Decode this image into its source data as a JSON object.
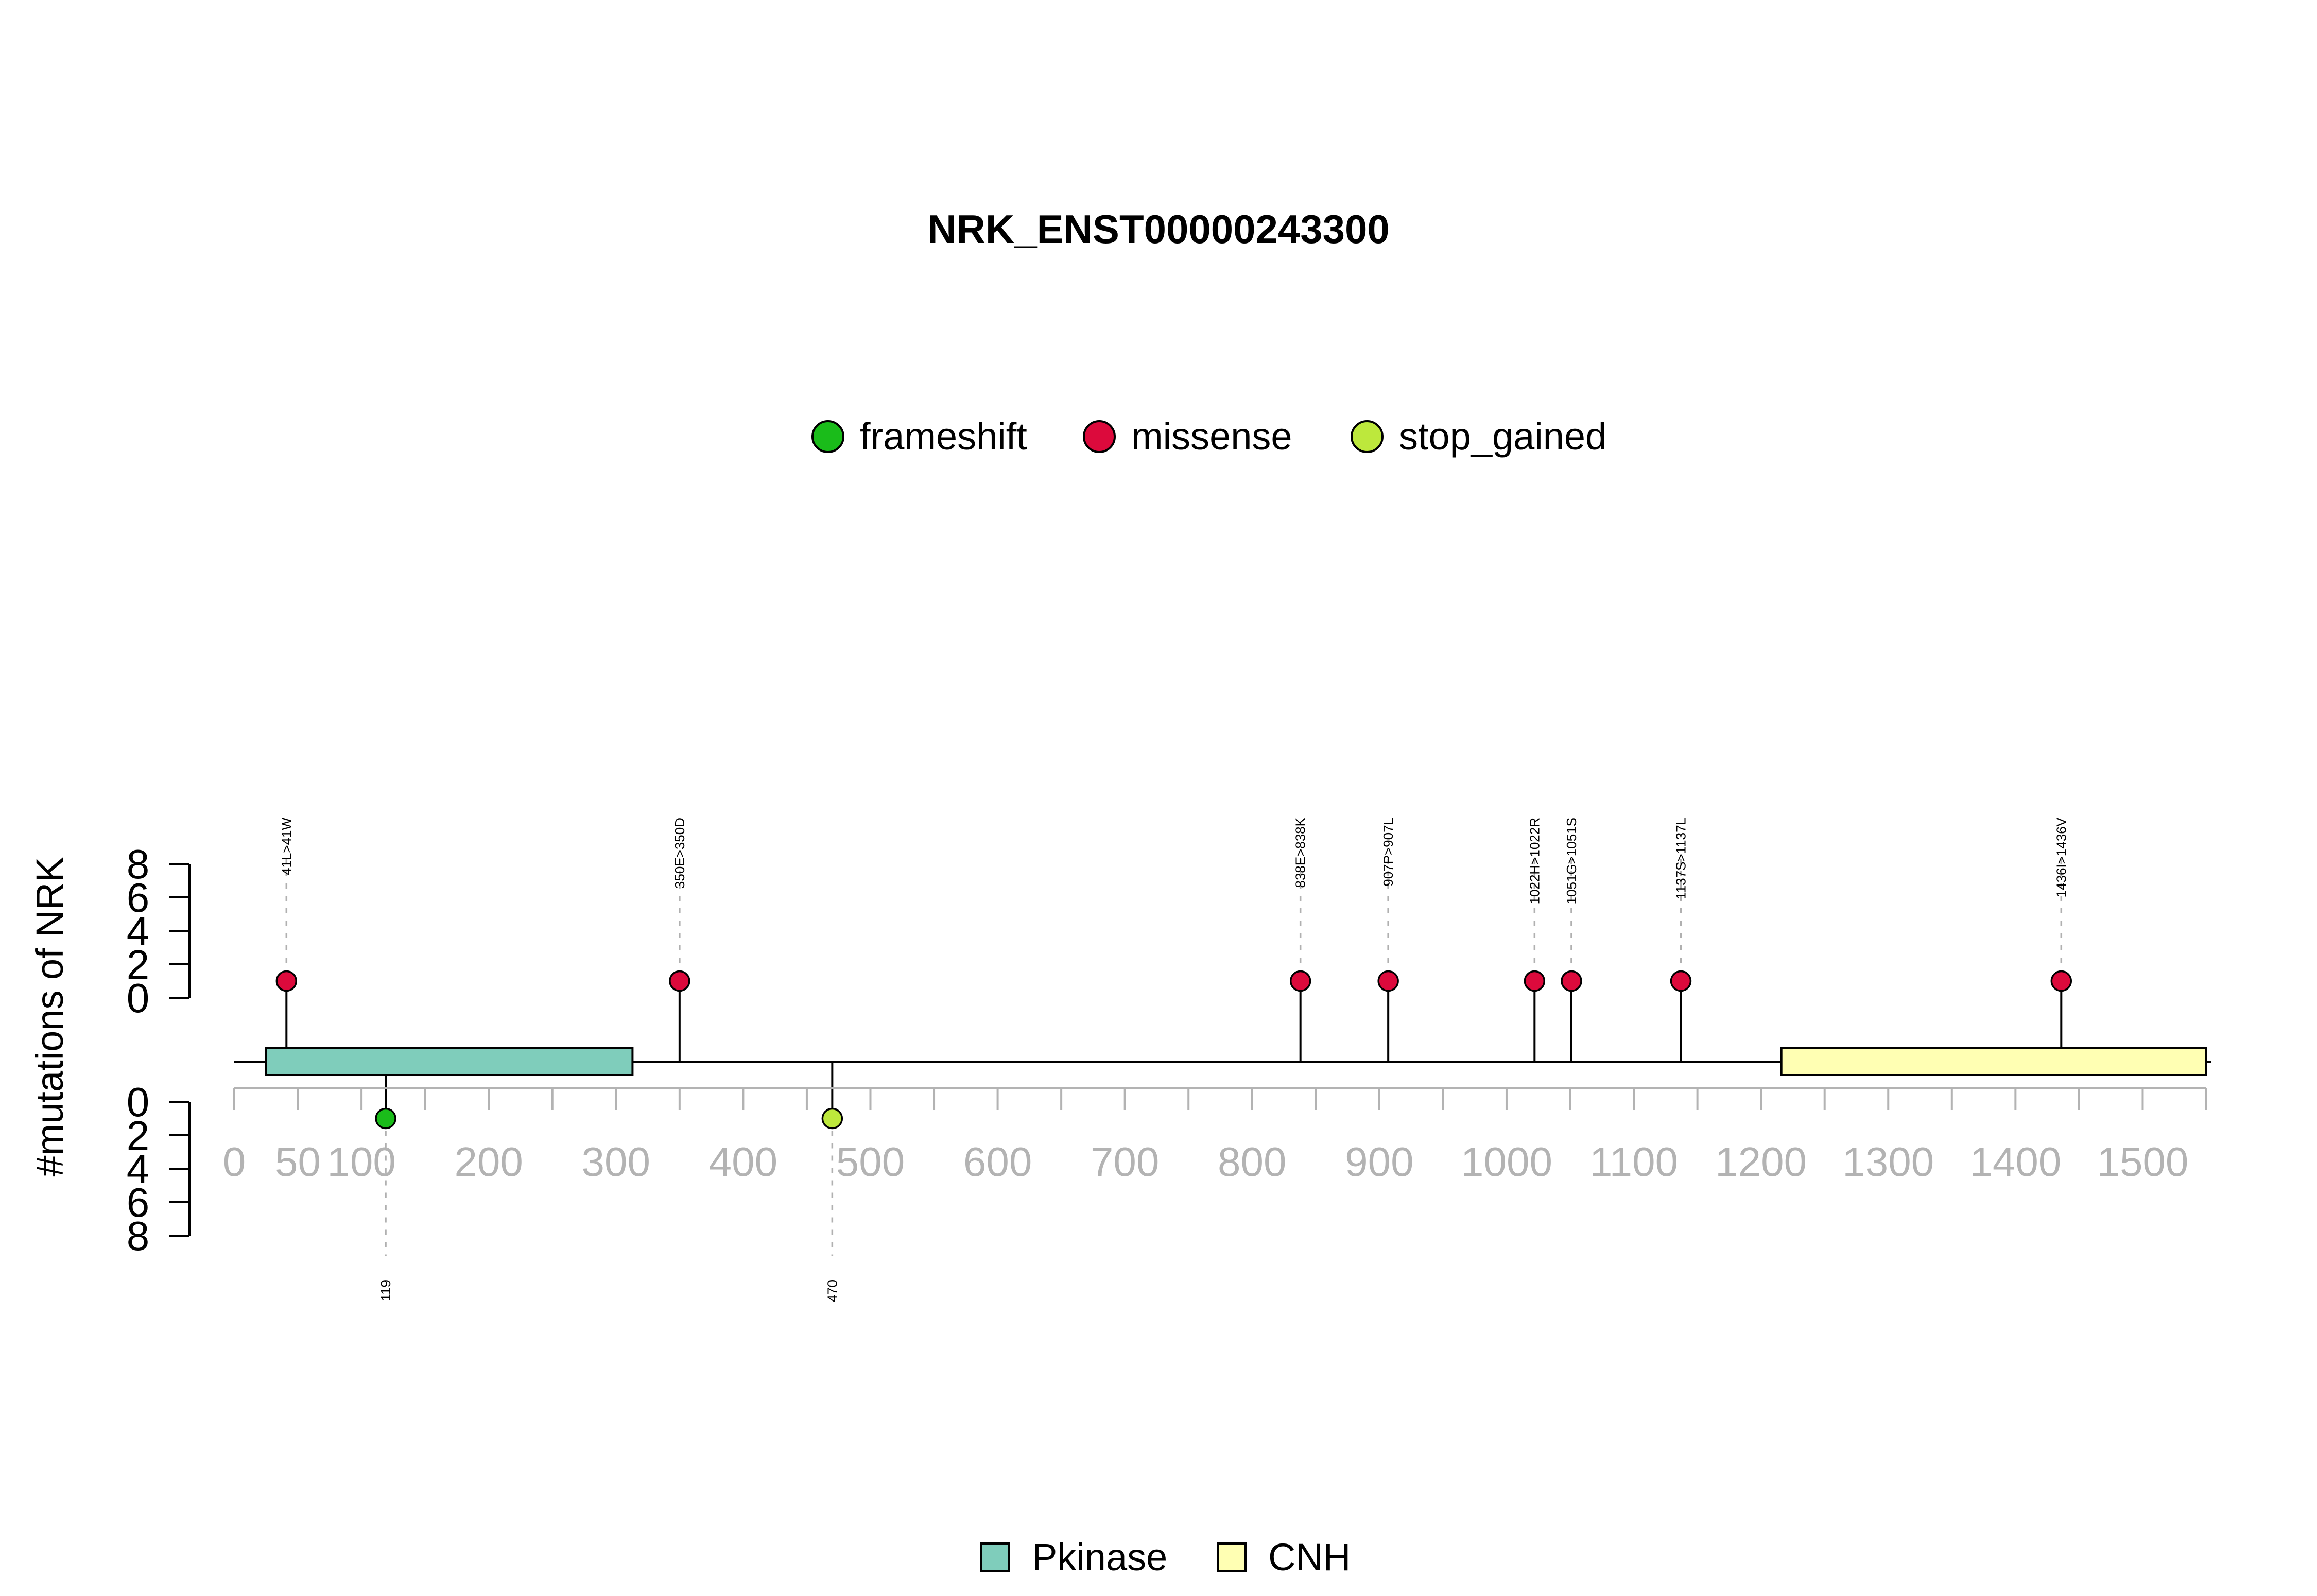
{
  "chart_data": {
    "type": "lollipop",
    "title": "NRK_ENST00000243300",
    "ylabel": "#mutations of NRK",
    "ylim": [
      0,
      8
    ],
    "y_ticks": [
      0,
      2,
      4,
      6,
      8
    ],
    "xlim": [
      0,
      1550
    ],
    "x_ticks": [
      0,
      50,
      100,
      200,
      300,
      400,
      500,
      600,
      700,
      800,
      900,
      1000,
      1100,
      1200,
      1300,
      1400,
      1500
    ],
    "x_minor_ticks": [
      0,
      50,
      100,
      150,
      200,
      250,
      300,
      350,
      400,
      450,
      500,
      550,
      600,
      650,
      700,
      750,
      800,
      850,
      900,
      950,
      1000,
      1050,
      1100,
      1150,
      1200,
      1250,
      1300,
      1350,
      1400,
      1450,
      1500,
      1550
    ],
    "mutation_legend": [
      {
        "name": "frameshift",
        "color": "#1ABC1A"
      },
      {
        "name": "missense",
        "color": "#DC0A3C"
      },
      {
        "name": "stop_gained",
        "color": "#BDE83C"
      }
    ],
    "domain_legend": [
      {
        "name": "Pkinase",
        "color": "#7FCDBB"
      },
      {
        "name": "CNH",
        "color": "#FFFFB3"
      }
    ],
    "domains": [
      {
        "name": "Pkinase",
        "start": 25,
        "end": 313
      },
      {
        "name": "CNH",
        "start": 1216,
        "end": 1550
      }
    ],
    "mutations_above": [
      {
        "position": 41,
        "label": "41L>41W",
        "count": 1,
        "type": "missense"
      },
      {
        "position": 350,
        "label": "350E>350D",
        "count": 1,
        "type": "missense"
      },
      {
        "position": 838,
        "label": "838E>838K",
        "count": 1,
        "type": "missense"
      },
      {
        "position": 907,
        "label": "907P>907L",
        "count": 1,
        "type": "missense"
      },
      {
        "position": 1022,
        "label": "1022H>1022R",
        "count": 1,
        "type": "missense"
      },
      {
        "position": 1051,
        "label": "1051G>1051S",
        "count": 1,
        "type": "missense"
      },
      {
        "position": 1137,
        "label": "1137S>1137L",
        "count": 1,
        "type": "missense"
      },
      {
        "position": 1436,
        "label": "1436I>1436V",
        "count": 1,
        "type": "missense"
      }
    ],
    "mutations_below": [
      {
        "position": 119,
        "label": "119",
        "count": 1,
        "type": "frameshift"
      },
      {
        "position": 470,
        "label": "470",
        "count": 1,
        "type": "stop_gained"
      }
    ]
  }
}
